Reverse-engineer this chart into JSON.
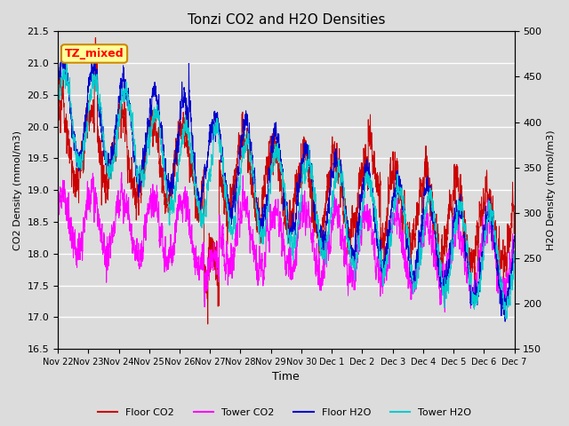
{
  "title": "Tonzi CO2 and H2O Densities",
  "xlabel": "Time",
  "ylabel_left": "CO2 Density (mmol/m3)",
  "ylabel_right": "H2O Density (mmol/m3)",
  "ylim_left": [
    16.5,
    21.5
  ],
  "ylim_right": [
    150,
    500
  ],
  "annotation_text": "TZ_mixed",
  "annotation_bg": "#ffff99",
  "annotation_edge": "#cc8800",
  "bg_color": "#dcdcdc",
  "line_colors": {
    "floor_co2": "#cc0000",
    "tower_co2": "#ff00ff",
    "floor_h2o": "#0000cc",
    "tower_h2o": "#00cccc"
  },
  "legend_labels": [
    "Floor CO2",
    "Tower CO2",
    "Floor H2O",
    "Tower H2O"
  ],
  "tick_labels": [
    "Nov 22",
    "Nov 23",
    "Nov 24",
    "Nov 25",
    "Nov 26",
    "Nov 27",
    "Nov 28",
    "Nov 29",
    "Nov 30",
    "Dec 1",
    "Dec 2",
    "Dec 3",
    "Dec 4",
    "Dec 5",
    "Dec 6",
    "Dec 7"
  ],
  "n_points": 5000,
  "total_days": 15,
  "seed": 123
}
